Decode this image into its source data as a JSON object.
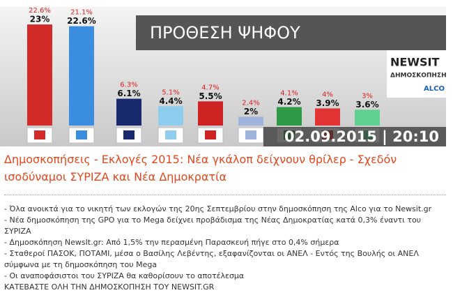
{
  "chart_data": {
    "type": "bar",
    "title": "ΠΡΟΘΕΣΗ ΨΗΦΟΥ",
    "timestamp": "02.09.2015 | 20:10",
    "brand": "NEWSIT",
    "brand_subtitle": "ΔΗΜΟΣΚΟΠΗΣΗ",
    "partner": "ALCO",
    "categories": [
      null,
      null,
      null,
      null,
      null,
      null,
      null,
      null,
      null
    ],
    "series": [
      {
        "color": "#e02020",
        "values": [
          22.6,
          21.1,
          6.3,
          5.1,
          4.7,
          2.4,
          4.1,
          4,
          3
        ],
        "value_labels": [
          "22.6%",
          "21.1%",
          "6.3%",
          "5.1%",
          "4.7%",
          "2.4%",
          "4.1%",
          "4%",
          "3%"
        ]
      },
      {
        "color": "#111111",
        "values": [
          23,
          22.6,
          6.1,
          4.4,
          5.5,
          2,
          4.2,
          3.9,
          3.6
        ],
        "value_labels": [
          "23%",
          "22.6%",
          "6.1%",
          "4.4%",
          "5.5%",
          "2%",
          "4.2%",
          "3.9%",
          "3.6%"
        ],
        "colors": [
          "#d32a2a",
          "#3b8de0",
          "#18296e",
          "#8fcdee",
          "#cf2222",
          "#9fb3dc",
          "#2f9a45",
          "#e23434",
          "#5fd08f"
        ]
      }
    ]
  },
  "article": {
    "headline": "Δημοσκοπήσεις - Εκλογές 2015: Νέα γκάλοπ δείχνουν θρίλερ - Σχεδόν ισοδύναμοι ΣΥΡΙΖΑ και Νέα Δημοκρατία",
    "bullets": [
      "- Όλα ανοικτά για το νικητή των εκλογών της 20ης Σεπτεμβρίου στην δημοσκόπηση της Alco για το Newsit.gr",
      "- Νέα δημοσκόπηση της GPO για το Mega δείχνει προβάδισμα της Νέας Δημοκρατίας κατά 0,3% έναντι του ΣΥΡΙΖΑ",
      "-  Δημοσκόπηση NewsIt.gr: Από 1,5% την περασμένη Παρασκευή πήγε στο 0,4% σήμερα",
      "- Σταθεροί ΠΑΣΟΚ, ΠΟΤΑΜΙ, μέσα ο Βασίλης Λεβέντης, εξαφανίζονται οι ΑΝΕΛ - Εντός της Βουλής οι ΑΝΕΛ σύμφωνα με τη δημοσκόπηση του Mega",
      "- Οι αναποφάσιστοι του ΣΥΡΙΖΑ θα καθορίσουν το αποτέλεσμα"
    ],
    "download": "ΚΑΤΕΒΑΣΤΕ ΟΛΗ ΤΗΝ ΔΗΜΟΣΚΟΠΗΣΗ ΤΟΥ NEWSIT.GR"
  }
}
